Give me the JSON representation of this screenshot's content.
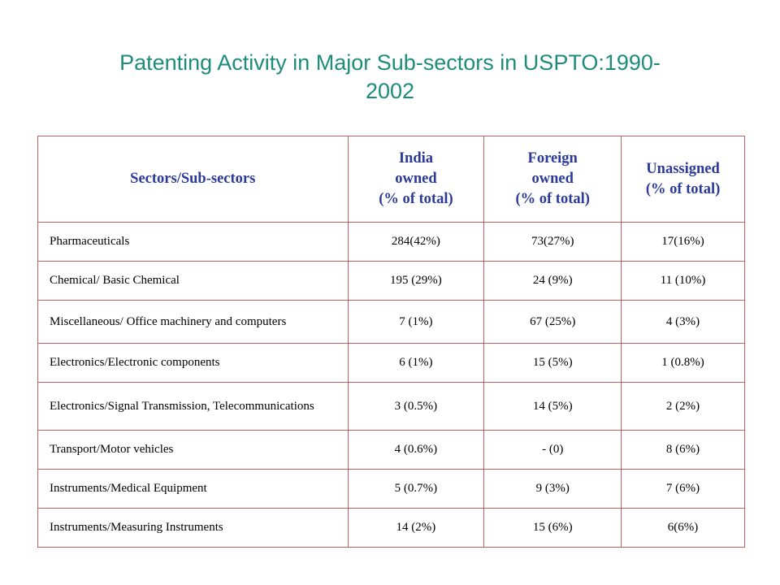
{
  "title_line1": "Patenting Activity in Major Sub-sectors in USPTO:1990-",
  "title_line2": "2002",
  "table": {
    "headers": [
      {
        "lines": [
          "Sectors/Sub-sectors"
        ]
      },
      {
        "lines": [
          "India",
          "owned",
          "(% of total)"
        ]
      },
      {
        "lines": [
          "Foreign",
          "owned",
          "(% of total)"
        ]
      },
      {
        "lines": [
          "Unassigned",
          "(% of total)"
        ]
      }
    ],
    "rows": [
      {
        "sector": "Pharmaceuticals",
        "india": "284(42%)",
        "foreign": "73(27%)",
        "unassigned": "17(16%)"
      },
      {
        "sector": "Chemical/ Basic Chemical",
        "india": "195 (29%)",
        "foreign": "24 (9%)",
        "unassigned": "11 (10%)"
      },
      {
        "sector": "Miscellaneous/ Office machinery and computers",
        "india": "7 (1%)",
        "foreign": "67 (25%)",
        "unassigned": "4 (3%)"
      },
      {
        "sector": "Electronics/Electronic components",
        "india": "6 (1%)",
        "foreign": "15 (5%)",
        "unassigned": "1 (0.8%)"
      },
      {
        "sector": "Electronics/Signal Transmission, Telecommunications",
        "india": "3 (0.5%)",
        "foreign": "14 (5%)",
        "unassigned": "2 (2%)"
      },
      {
        "sector": "Transport/Motor vehicles",
        "india": "4 (0.6%)",
        "foreign": "- (0)",
        "unassigned": "8 (6%)"
      },
      {
        "sector": "Instruments/Medical Equipment",
        "india": "5 (0.7%)",
        "foreign": "9 (3%)",
        "unassigned": "7 (6%)"
      },
      {
        "sector": "Instruments/Measuring Instruments",
        "india": "14 (2%)",
        "foreign": "15 (6%)",
        "unassigned": "6(6%)"
      }
    ]
  },
  "colors": {
    "title": "#1e8c7a",
    "header_text": "#2b3a9a",
    "border": "#c06060"
  }
}
